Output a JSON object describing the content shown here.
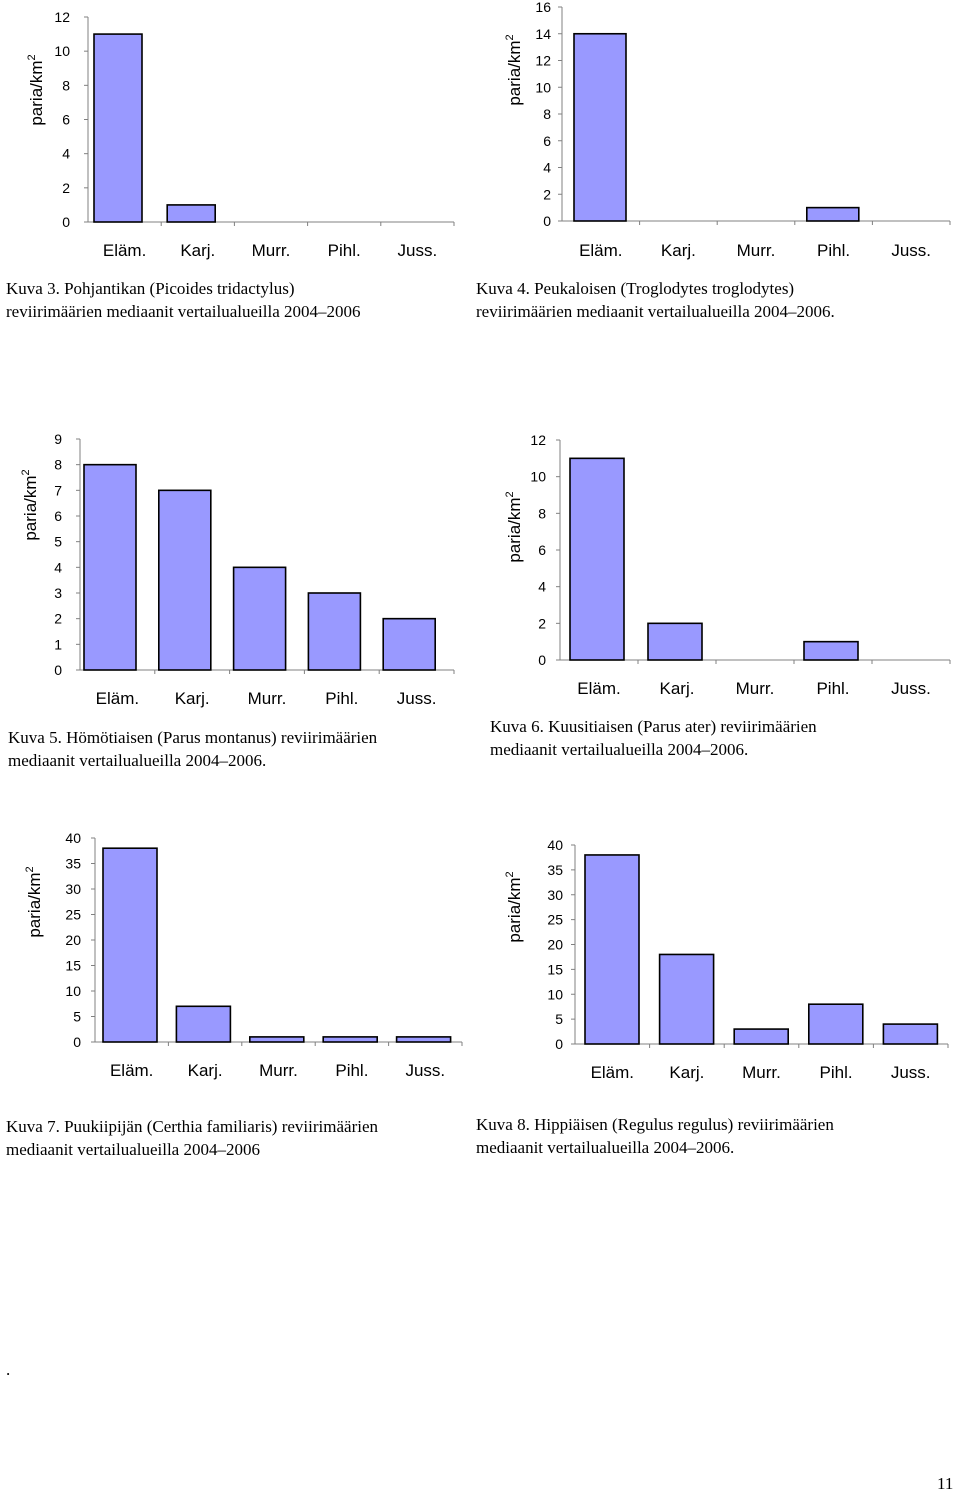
{
  "chart_data": [
    {
      "type": "bar",
      "ylabel": "paria/km",
      "ylabel_superscript": "2",
      "categories": [
        "Eläm.",
        "Karj.",
        "Murr.",
        "Pihl.",
        "Juss."
      ],
      "values": [
        11,
        1,
        0,
        0,
        0
      ],
      "ylim": [
        0,
        12
      ],
      "yticks": [
        "0",
        "2",
        "4",
        "6",
        "8",
        "10",
        "12"
      ],
      "bar_color": "#9999ff",
      "caption_lines": [
        "Kuva 3. Pohjantikan (Picoides tridactylus)",
        "reviirimäärien mediaanit vertailualueilla 2004–2006"
      ]
    },
    {
      "type": "bar",
      "ylabel": "paria/km",
      "ylabel_superscript": "2",
      "categories": [
        "Eläm.",
        "Karj.",
        "Murr.",
        "Pihl.",
        "Juss."
      ],
      "values": [
        14,
        0,
        0,
        1,
        0
      ],
      "ylim": [
        0,
        16
      ],
      "yticks": [
        "0",
        "2",
        "4",
        "6",
        "8",
        "10",
        "12",
        "14",
        "16"
      ],
      "bar_color": "#9999ff",
      "caption_lines": [
        "Kuva 4. Peukaloisen (Troglodytes troglodytes)",
        "reviirimäärien mediaanit vertailualueilla 2004–2006."
      ]
    },
    {
      "type": "bar",
      "ylabel": "paria/km",
      "ylabel_superscript": "2",
      "categories": [
        "Eläm.",
        "Karj.",
        "Murr.",
        "Pihl.",
        "Juss."
      ],
      "values": [
        8,
        7,
        4,
        3,
        2
      ],
      "ylim": [
        0,
        9
      ],
      "yticks": [
        "0",
        "1",
        "2",
        "3",
        "4",
        "5",
        "6",
        "7",
        "8",
        "9"
      ],
      "bar_color": "#9999ff",
      "caption_lines": [
        "Kuva 5. Hömötiaisen (Parus montanus) reviirimäärien",
        "mediaanit vertailualueilla 2004–2006."
      ]
    },
    {
      "type": "bar",
      "ylabel": "paria/km",
      "ylabel_superscript": "2",
      "categories": [
        "Eläm.",
        "Karj.",
        "Murr.",
        "Pihl.",
        "Juss."
      ],
      "values": [
        11,
        2,
        0,
        1,
        0
      ],
      "ylim": [
        0,
        12
      ],
      "yticks": [
        "0",
        "2",
        "4",
        "6",
        "8",
        "10",
        "12"
      ],
      "bar_color": "#9999ff",
      "caption_lines": [
        "Kuva 6. Kuusitiaisen (Parus ater) reviirimäärien",
        "mediaanit vertailualueilla 2004–2006."
      ]
    },
    {
      "type": "bar",
      "ylabel": "paria/km",
      "ylabel_superscript": "2",
      "categories": [
        "Eläm.",
        "Karj.",
        "Murr.",
        "Pihl.",
        "Juss."
      ],
      "values": [
        38,
        7,
        1,
        1,
        1
      ],
      "ylim": [
        0,
        40
      ],
      "yticks": [
        "0",
        "5",
        "10",
        "15",
        "20",
        "25",
        "30",
        "35",
        "40"
      ],
      "bar_color": "#9999ff",
      "caption_lines": [
        "Kuva 7. Puukiipijän (Certhia familiaris) reviirimäärien",
        "mediaanit vertailualueilla 2004–2006"
      ]
    },
    {
      "type": "bar",
      "ylabel": "paria/km",
      "ylabel_superscript": "2",
      "categories": [
        "Eläm.",
        "Karj.",
        "Murr.",
        "Pihl.",
        "Juss."
      ],
      "values": [
        38,
        18,
        3,
        8,
        4
      ],
      "ylim": [
        0,
        40
      ],
      "yticks": [
        "0",
        "5",
        "10",
        "15",
        "20",
        "25",
        "30",
        "35",
        "40"
      ],
      "bar_color": "#9999ff",
      "caption_lines": [
        "Kuva 8. Hippiäisen (Regulus regulus) reviirimäärien",
        "mediaanit vertailualueilla 2004–2006."
      ]
    }
  ],
  "page": {
    "dot": ".",
    "number": "11"
  }
}
